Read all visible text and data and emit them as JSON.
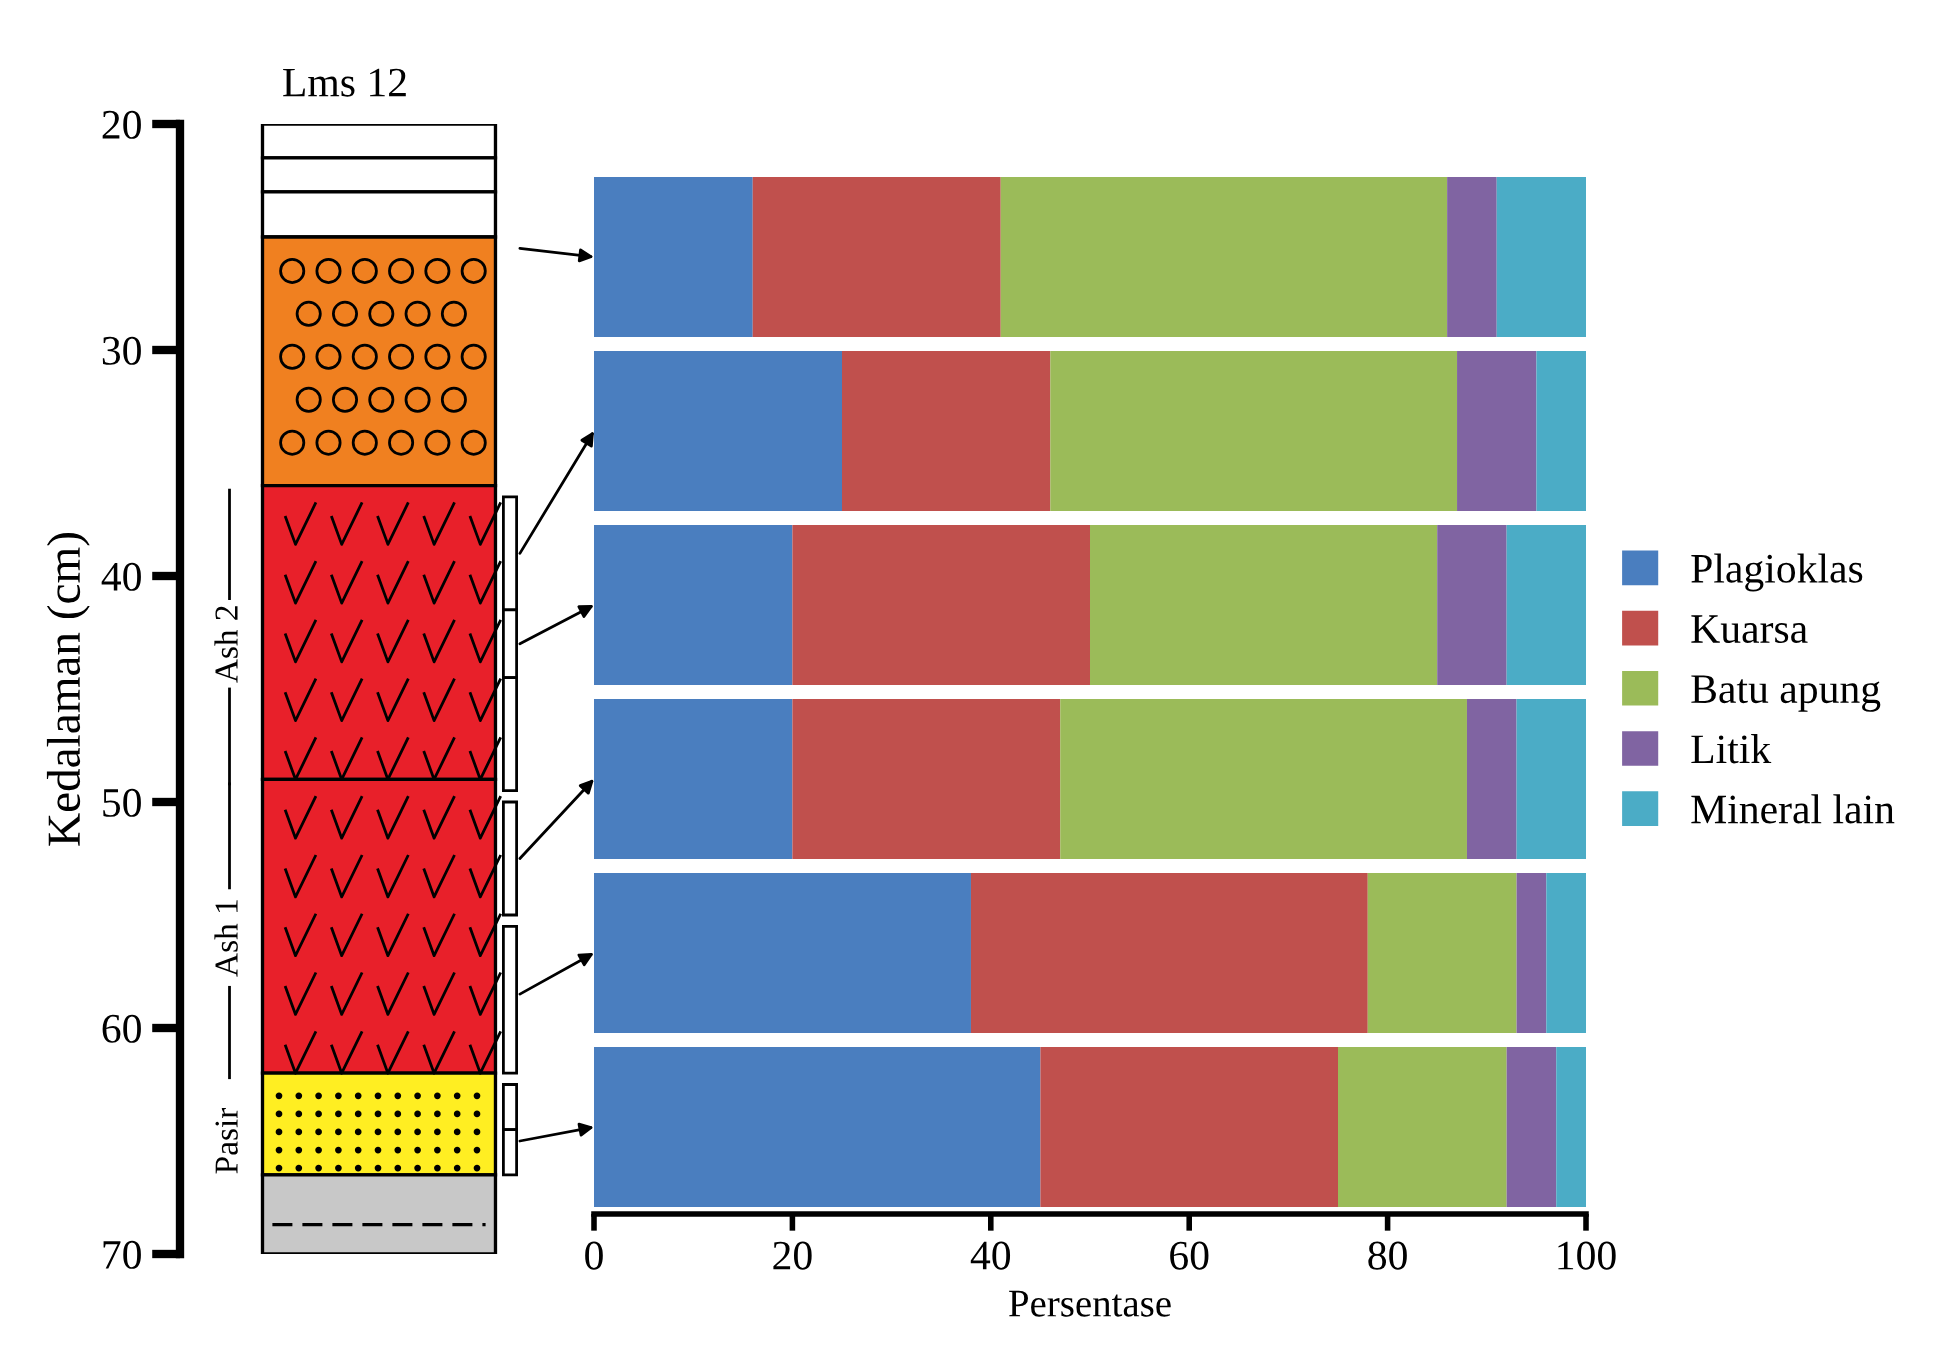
{
  "chart_data": [
    {
      "type": "bar",
      "title": "Lms 12",
      "ylabel": "Kedalaman (cm)",
      "ylim": [
        70,
        20
      ],
      "yticks": [
        20,
        30,
        40,
        50,
        60,
        70
      ],
      "tick_labels": "y",
      "categories": [
        null
      ],
      "series": [
        {
          "color": "#ffffff",
          "values": [
            1.5
          ],
          "base": [
            20
          ]
        },
        {
          "color": "#ffffff",
          "values": [
            1.5
          ],
          "base": [
            21.5
          ]
        },
        {
          "color": "#ffffff",
          "values": [
            2
          ],
          "base": [
            23
          ]
        },
        {
          "color": "#f08020",
          "values": [
            11
          ],
          "base": [
            25
          ]
        },
        {
          "color": "#e8202a",
          "values": [
            13
          ],
          "base": [
            36
          ]
        },
        {
          "color": "#e8202a",
          "values": [
            13
          ],
          "base": [
            49
          ]
        },
        {
          "color": "#ffee22",
          "values": [
            4.5
          ],
          "base": [
            62
          ]
        },
        {
          "color": "#c8c8c8",
          "values": [
            3.5
          ],
          "base": [
            66.5
          ]
        }
      ],
      "ref_lines": [
        {
          "axis": "y",
          "value": 68.7,
          "line_style": "dashed",
          "color": "#000000"
        }
      ],
      "annotations": [
        "Ash 2",
        "Ash 1",
        "Pasir"
      ]
    },
    {
      "type": "bar",
      "orientation": "horizontal",
      "stacked": true,
      "xlabel": "Persentase",
      "xlim": [
        0,
        100
      ],
      "xticks": [
        0,
        20,
        40,
        60,
        80,
        100
      ],
      "tick_labels": "x",
      "legend": "right",
      "grid": false,
      "categories": [
        null,
        null,
        null,
        null,
        null,
        null
      ],
      "series": [
        {
          "name": "Plagioklas",
          "color": "#4a7ebf",
          "values": [
            16,
            25,
            20,
            20,
            38,
            45
          ]
        },
        {
          "name": "Kuarsa",
          "color": "#c0504d",
          "values": [
            25,
            21,
            30,
            27,
            40,
            30
          ]
        },
        {
          "name": "Batu apung",
          "color": "#9bbb59",
          "values": [
            45,
            41,
            35,
            41,
            15,
            17
          ]
        },
        {
          "name": "Litik",
          "color": "#8064a2",
          "values": [
            5,
            8,
            7,
            5,
            3,
            5
          ]
        },
        {
          "name": "Mineral lain",
          "color": "#4bacc6",
          "values": [
            9,
            5,
            8,
            7,
            4,
            3
          ]
        }
      ]
    }
  ]
}
